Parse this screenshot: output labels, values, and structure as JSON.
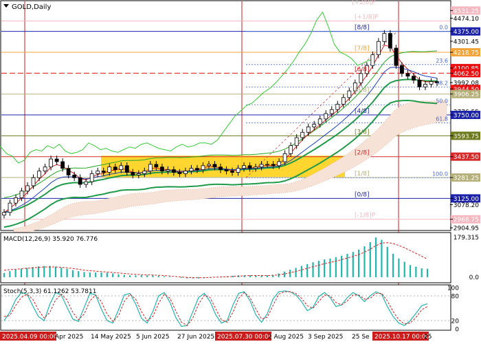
{
  "chart_data": {
    "type": "candlestick",
    "symbol_label": "GOLD,Daily",
    "price_axis": {
      "ylim": [
        2890,
        4600
      ],
      "ticks": [
        {
          "v": 4531.25,
          "label": "4531.25",
          "color": "#f4b8c0"
        },
        {
          "v": 4474.1,
          "label": "4474.10",
          "color": "#ffffff"
        },
        {
          "v": 4375.0,
          "label": "4375.00",
          "color": "#1b22a8"
        },
        {
          "v": 4301.45,
          "label": "4301.45",
          "color": "#ffffff"
        },
        {
          "v": 4218.75,
          "label": "4218.75",
          "color": "#f2a33a"
        },
        {
          "v": 4100.85,
          "label": "4100.85",
          "color": "#e81010"
        },
        {
          "v": 4062.5,
          "label": "4062.50",
          "color": "#e81010"
        },
        {
          "v": 3992.08,
          "label": "3992.08",
          "color": "#ffffff"
        },
        {
          "v": 3944.5,
          "label": "3944.50",
          "color": "#e81010"
        },
        {
          "v": 3906.25,
          "label": "3906.25",
          "color": "#b5b07a"
        },
        {
          "v": 3776.55,
          "label": "3776.55",
          "color": "#ffffff"
        },
        {
          "v": 3750.0,
          "label": "3750.00",
          "color": "#1b22a8"
        },
        {
          "v": 3593.75,
          "label": "3593.75",
          "color": "#6d7a1c"
        },
        {
          "v": 3437.5,
          "label": "3437.50",
          "color": "#d42a2a"
        },
        {
          "v": 3281.25,
          "label": "3281.25",
          "color": "#b5b07a"
        },
        {
          "v": 3125.0,
          "label": "3125.00",
          "color": "#1b22a8"
        },
        {
          "v": 3078.2,
          "label": "3078.20",
          "color": "#ffffff"
        },
        {
          "v": 2968.75,
          "label": "2968.75",
          "color": "#f4b8c0"
        },
        {
          "v": 2904.95,
          "label": "2904.95",
          "color": "#ffffff"
        }
      ]
    },
    "murrey_levels": [
      {
        "v": 4531.25,
        "label": "[+2/8]P",
        "color": "#f4b8c0"
      },
      {
        "v": 4453.1,
        "label": "[+1/8]P",
        "color": "#f4b8c0"
      },
      {
        "v": 4375.0,
        "label": "[8/8]",
        "color": "#1b22a8"
      },
      {
        "v": 4218.75,
        "label": "[7/8]",
        "color": "#f2a33a"
      },
      {
        "v": 4062.5,
        "label": "[6/8]",
        "color": "#e81010"
      },
      {
        "v": 3906.25,
        "label": "[5/8]",
        "color": "#b5b07a"
      },
      {
        "v": 3750.0,
        "label": "[4/8]",
        "color": "#1b22a8"
      },
      {
        "v": 3593.75,
        "label": "[3/8]",
        "color": "#6d7a1c"
      },
      {
        "v": 3437.5,
        "label": "[2/8]",
        "color": "#d42a2a"
      },
      {
        "v": 3281.25,
        "label": "[1/8]",
        "color": "#b5b07a"
      },
      {
        "v": 3125.0,
        "label": "[0/8]",
        "color": "#1b22a8"
      },
      {
        "v": 2968.75,
        "label": "[-1/8]P",
        "color": "#f4b8c0"
      }
    ],
    "fibonacci_levels": [
      {
        "pct": "0.0",
        "v": 4375.0
      },
      {
        "pct": "23.6",
        "v": 4127.0
      },
      {
        "pct": "38.2",
        "v": 3958.0
      },
      {
        "pct": "50.0",
        "v": 3826.0
      },
      {
        "pct": "61.8",
        "v": 3690.0
      },
      {
        "pct": "100.0",
        "v": 3280.0
      }
    ],
    "date_labels": [
      "2025.04.09 00:00",
      "Apr 2025",
      "14 May 2025",
      "5 Jun 2025",
      "27 Jun 2025",
      "2025.07.30 00:00",
      "2 Aug 2025",
      "3 Sep 2025",
      "25 Se",
      "2025.10.17 00:00",
      "25"
    ],
    "highlighted_dates": [
      "2025.04.09 00:00",
      "2025.07.30 00:00",
      "2025.10.17 00:00"
    ],
    "close_series": [
      3020,
      3090,
      3130,
      3180,
      3220,
      3280,
      3330,
      3360,
      3420,
      3400,
      3350,
      3300,
      3280,
      3230,
      3250,
      3310,
      3330,
      3320,
      3360,
      3340,
      3370,
      3320,
      3300,
      3310,
      3330,
      3380,
      3360,
      3330,
      3340,
      3320,
      3310,
      3330,
      3350,
      3340,
      3370,
      3380,
      3360,
      3340,
      3330,
      3320,
      3350,
      3370,
      3350,
      3360,
      3380,
      3380,
      3370,
      3400,
      3460,
      3520,
      3580,
      3620,
      3660,
      3680,
      3720,
      3760,
      3790,
      3830,
      3880,
      3930,
      3990,
      4060,
      4120,
      4200,
      4300,
      4360,
      4250,
      4120,
      4060,
      4040,
      4010,
      3960,
      3980,
      4000,
      3990
    ],
    "macd": {
      "label": "MACD(12,26,9) 35.920 76.776",
      "ylim": [
        -15,
        179.315
      ],
      "ticks": [
        "179.315",
        "0.0"
      ],
      "histogram": [
        18,
        26,
        32,
        36,
        40,
        43,
        46,
        48,
        48,
        45,
        40,
        36,
        30,
        26,
        22,
        20,
        20,
        20,
        19,
        16,
        12,
        10,
        8,
        8,
        8,
        8,
        8,
        6,
        4,
        2,
        0,
        -3,
        -5,
        -5,
        -5,
        -4,
        -2,
        0,
        2,
        4,
        6,
        8,
        8,
        8,
        8,
        8,
        8,
        10,
        16,
        24,
        32,
        40,
        48,
        56,
        64,
        70,
        76,
        80,
        86,
        92,
        100,
        108,
        118,
        132,
        150,
        170,
        160,
        130,
        100,
        80,
        66,
        52,
        45,
        38,
        36
      ],
      "signal": [
        30,
        32,
        34,
        36,
        38,
        40,
        42,
        44,
        44,
        44,
        42,
        40,
        37,
        34,
        30,
        28,
        26,
        24,
        22,
        20,
        18,
        16,
        14,
        12,
        11,
        10,
        9,
        8,
        7,
        5,
        3,
        1,
        -1,
        -2,
        -2,
        -2,
        -1,
        0,
        1,
        2,
        3,
        5,
        6,
        7,
        7,
        7,
        7,
        8,
        10,
        14,
        19,
        25,
        31,
        38,
        45,
        51,
        58,
        63,
        69,
        75,
        82,
        89,
        97,
        107,
        120,
        135,
        146,
        148,
        144,
        136,
        126,
        114,
        102,
        90,
        77
      ]
    },
    "stoch": {
      "label": "Stoch(5,3,3) 61.1262 53.7811",
      "ylim": [
        0,
        100
      ],
      "ticks": [
        "100",
        "80",
        "20",
        "0"
      ],
      "main": [
        20,
        40,
        70,
        88,
        84,
        56,
        30,
        20,
        60,
        88,
        82,
        52,
        24,
        18,
        52,
        86,
        82,
        48,
        20,
        14,
        46,
        82,
        86,
        60,
        26,
        14,
        42,
        80,
        88,
        64,
        28,
        6,
        8,
        42,
        76,
        86,
        66,
        34,
        14,
        20,
        58,
        86,
        90,
        68,
        34,
        16,
        36,
        72,
        90,
        92,
        90,
        82,
        66,
        44,
        52,
        78,
        88,
        76,
        54,
        58,
        76,
        88,
        80,
        66,
        80,
        90,
        84,
        54,
        30,
        14,
        8,
        20,
        38,
        56,
        61
      ],
      "signal": [
        30,
        32,
        56,
        76,
        84,
        72,
        46,
        26,
        40,
        70,
        84,
        70,
        40,
        22,
        36,
        68,
        82,
        66,
        36,
        18,
        32,
        66,
        84,
        72,
        42,
        20,
        30,
        62,
        84,
        74,
        44,
        16,
        8,
        26,
        60,
        82,
        76,
        48,
        22,
        16,
        40,
        74,
        88,
        76,
        48,
        24,
        28,
        56,
        84,
        90,
        90,
        86,
        74,
        56,
        50,
        66,
        82,
        80,
        64,
        58,
        68,
        82,
        82,
        72,
        74,
        86,
        86,
        68,
        42,
        22,
        12,
        14,
        28,
        46,
        54
      ]
    }
  }
}
